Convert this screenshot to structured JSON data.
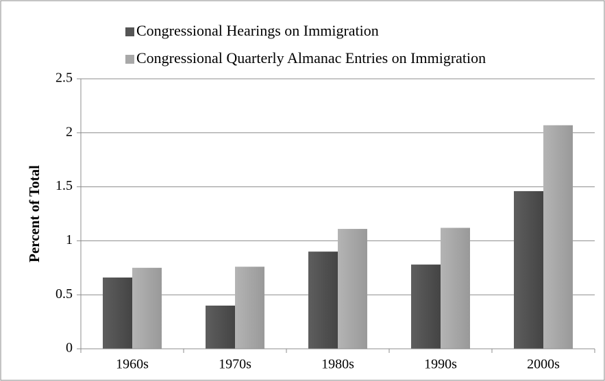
{
  "chart_data": {
    "type": "bar",
    "y_label": "Percent of Total",
    "categories": [
      "1960s",
      "1970s",
      "1980s",
      "1990s",
      "2000s"
    ],
    "series": [
      {
        "name": "Congressional Hearings on Immigration",
        "color": "#555555",
        "values": [
          0.66,
          0.4,
          0.9,
          0.78,
          1.46
        ]
      },
      {
        "name": "Congressional Quarterly Almanac Entries on Immigration",
        "color": "#a8a8a8",
        "values": [
          0.75,
          0.76,
          1.11,
          1.12,
          2.07
        ]
      }
    ],
    "ylim": [
      0,
      2.5
    ],
    "yticks": [
      0,
      0.5,
      1,
      1.5,
      2,
      2.5
    ],
    "grid": true,
    "legend": "top-left"
  }
}
